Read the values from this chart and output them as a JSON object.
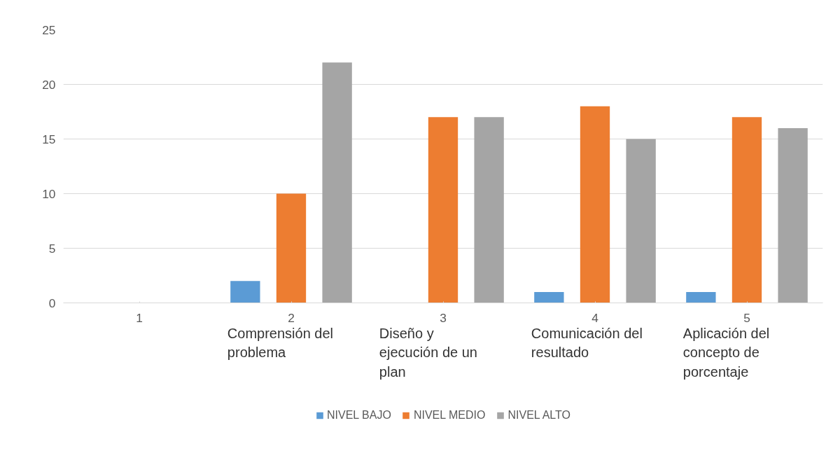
{
  "chart_data": {
    "type": "bar",
    "categories": [
      "1",
      "2",
      "3",
      "4",
      "5"
    ],
    "series": [
      {
        "name": "NIVEL BAJO",
        "color": "#5b9bd5",
        "values": [
          0,
          2,
          0,
          1,
          1
        ]
      },
      {
        "name": "NIVEL MEDIO",
        "color": "#ed7d31",
        "values": [
          0,
          10,
          17,
          18,
          17
        ]
      },
      {
        "name": "NIVEL ALTO",
        "color": "#a5a5a5",
        "values": [
          0,
          22,
          17,
          15,
          16
        ]
      }
    ],
    "annotations": [
      "Comprensión del problema",
      "Diseño y ejecución de un plan",
      "Comunicación del resultado",
      "Aplicación del concepto de porcentaje"
    ],
    "ylim": [
      0,
      25
    ],
    "yticks": [
      0,
      5,
      10,
      15,
      20,
      25
    ],
    "grid": "y",
    "legend": "bottom"
  }
}
